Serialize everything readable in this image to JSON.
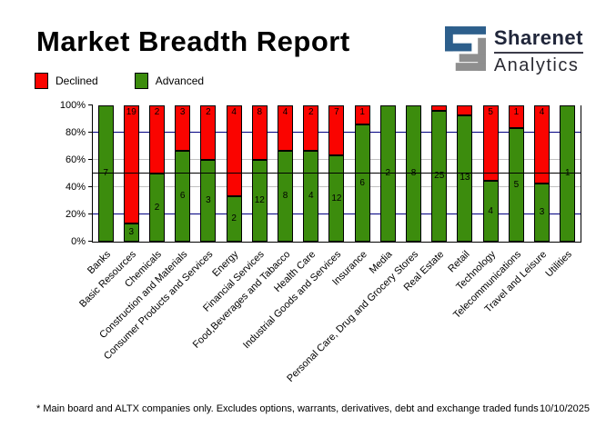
{
  "header": {
    "title": "Market Breadth Report",
    "logo": {
      "brand_top": "Sharenet",
      "brand_bottom": "Analytics",
      "blue": "#2d5f8c",
      "gray": "#8f8f8f"
    }
  },
  "legend": {
    "declined_label": "Declined",
    "advanced_label": "Advanced"
  },
  "colors": {
    "declined": "#fa0400",
    "advanced": "#3c8c0d",
    "grid_major": "#000080",
    "grid_minor": "#c0c0c0",
    "midline": "#000000"
  },
  "chart_data": {
    "type": "bar",
    "stacked": true,
    "title": "Market Breadth Report",
    "ylabel": "",
    "xlabel": "",
    "ylim": [
      0,
      100
    ],
    "y_ticks": [
      {
        "pct": 100,
        "label": "100%"
      },
      {
        "pct": 80,
        "label": "80%"
      },
      {
        "pct": 60,
        "label": "60%"
      },
      {
        "pct": 40,
        "label": "40%"
      },
      {
        "pct": 20,
        "label": "20%"
      },
      {
        "pct": 0,
        "label": "0%"
      }
    ],
    "gridlines": [
      {
        "pct": 20,
        "color": "#000080"
      },
      {
        "pct": 40,
        "color": "#c0c0c0"
      },
      {
        "pct": 60,
        "color": "#c0c0c0"
      },
      {
        "pct": 80,
        "color": "#000080"
      },
      {
        "pct": 50,
        "color": "#000000",
        "overlay": true
      }
    ],
    "legend_position": "top-left",
    "series_names": [
      "Declined",
      "Advanced"
    ],
    "bars": [
      {
        "category": "Banks",
        "advanced": 7,
        "declined": null,
        "advanced_pct": 100
      },
      {
        "category": "Basic Resources",
        "advanced": 3,
        "declined": 19,
        "advanced_pct": 13.6
      },
      {
        "category": "Chemicals",
        "advanced": 2,
        "declined": 2,
        "advanced_pct": 50
      },
      {
        "category": "Construction and Materials",
        "advanced": 6,
        "declined": 3,
        "advanced_pct": 66.7
      },
      {
        "category": "Consumer Products and Services",
        "advanced": 3,
        "declined": 2,
        "advanced_pct": 60
      },
      {
        "category": "Energy",
        "advanced": 2,
        "declined": 4,
        "advanced_pct": 33.3
      },
      {
        "category": "Financial Services",
        "advanced": 12,
        "declined": 8,
        "advanced_pct": 60
      },
      {
        "category": "Food,Beverages and Tabacco",
        "advanced": 8,
        "declined": 4,
        "advanced_pct": 66.7
      },
      {
        "category": "Health Care",
        "advanced": 4,
        "declined": 2,
        "advanced_pct": 66.7
      },
      {
        "category": "Industrial Goods and Services",
        "advanced": 12,
        "declined": 7,
        "advanced_pct": 63.2
      },
      {
        "category": "Insurance",
        "advanced": 6,
        "declined": 1,
        "advanced_pct": 85.7
      },
      {
        "category": "Media",
        "advanced": 2,
        "declined": null,
        "advanced_pct": 100
      },
      {
        "category": "Personal Care, Drug and Grocery Stores",
        "advanced": 8,
        "declined": null,
        "advanced_pct": 100
      },
      {
        "category": "Real Estate",
        "advanced": 25,
        "declined": null,
        "advanced_pct": 96.2
      },
      {
        "category": "Retail",
        "advanced": 13,
        "declined": null,
        "advanced_pct": 92.9
      },
      {
        "category": "Technology",
        "advanced": 4,
        "declined": 5,
        "advanced_pct": 44.4
      },
      {
        "category": "Telecommunications",
        "advanced": 5,
        "declined": 1,
        "advanced_pct": 83.3
      },
      {
        "category": "Travel and Leisure",
        "advanced": 3,
        "declined": 4,
        "advanced_pct": 42.9
      },
      {
        "category": "Utilities",
        "advanced": 1,
        "declined": null,
        "advanced_pct": 100
      }
    ]
  },
  "footer": {
    "note": "* Main board and ALTX companies only. Excludes options, warrants, derivatives, debt and exchange traded funds",
    "date": "10/10/2025"
  }
}
